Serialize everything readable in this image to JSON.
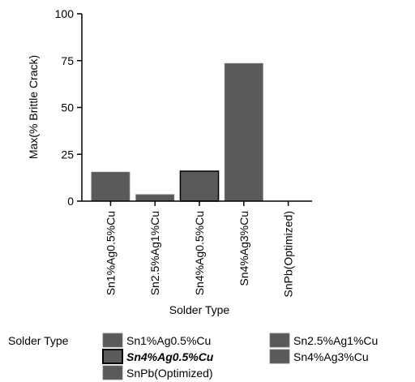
{
  "chart_data": {
    "type": "bar",
    "title": "",
    "xlabel": "Solder Type",
    "ylabel": "Max(% Brittle Crack)",
    "ylim": [
      0,
      100
    ],
    "yticks": [
      0,
      25,
      50,
      75,
      100
    ],
    "categories": [
      "Sn1%Ag0.5%Cu",
      "Sn2.5%Ag1%Cu",
      "Sn4%Ag0.5%Cu",
      "Sn4%Ag3%Cu",
      "SnPb(Optimized)"
    ],
    "values": [
      15.5,
      3.5,
      16,
      73.5,
      0
    ],
    "bar_color": "#5a5a5a",
    "highlighted_category": "Sn4%Ag0.5%Cu",
    "grid": false,
    "legend": {
      "title": "Solder Type",
      "placement": "bottom",
      "entries": [
        "Sn1%Ag0.5%Cu",
        "Sn2.5%Ag1%Cu",
        "Sn4%Ag0.5%Cu",
        "Sn4%Ag3%Cu",
        "SnPb(Optimized)"
      ]
    }
  }
}
